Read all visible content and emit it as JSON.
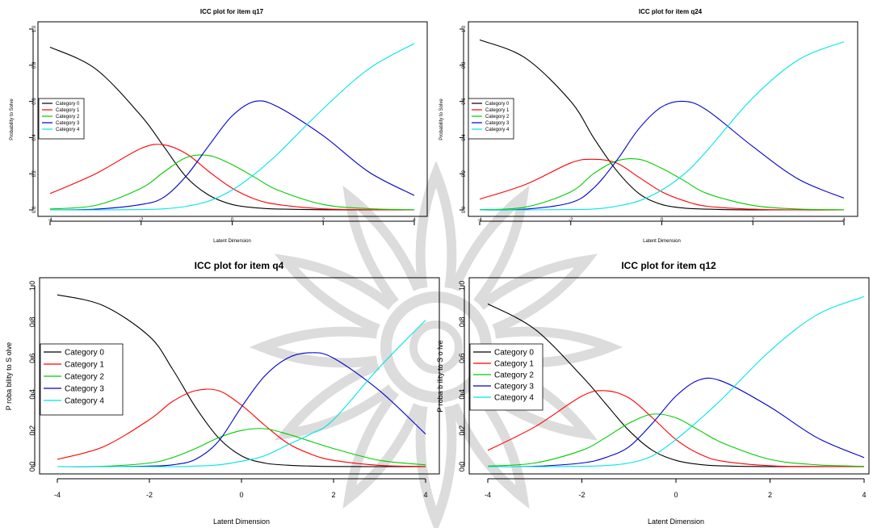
{
  "colors": {
    "category_0": "#000000",
    "category_1": "#ff0000",
    "category_2": "#00cc00",
    "category_3": "#0000cc",
    "category_4": "#00e5e5",
    "watermark": "#dcdcdc"
  },
  "watermark": {
    "icon": "ornamental-rosette-icon"
  },
  "chart_data": [
    {
      "type": "line",
      "title": "ICC plot for item q17",
      "xlabel": "Latent Dimension",
      "ylabel": "Probability to Solve",
      "xlim": [
        -4,
        4
      ],
      "ylim": [
        0,
        1
      ],
      "xticks": [
        "-4",
        "-2",
        "0",
        "2",
        "4"
      ],
      "yticks": [
        "0.0",
        "0.2",
        "0.4",
        "0.6",
        "0.8",
        "1.0"
      ],
      "legend_position": "left",
      "x": [
        -4,
        -3,
        -2,
        -1.5,
        -1,
        -0.5,
        0,
        0.5,
        1,
        2,
        3,
        4
      ],
      "series": [
        {
          "name": "Category 0",
          "color": "#000000",
          "values": [
            0.9,
            0.78,
            0.52,
            0.35,
            0.18,
            0.08,
            0.03,
            0.012,
            0.005,
            0.001,
            0.0,
            0.0
          ]
        },
        {
          "name": "Category 1",
          "color": "#ff0000",
          "values": [
            0.09,
            0.2,
            0.34,
            0.36,
            0.31,
            0.21,
            0.12,
            0.06,
            0.03,
            0.006,
            0.001,
            0.0
          ]
        },
        {
          "name": "Category 2",
          "color": "#00cc00",
          "values": [
            0.005,
            0.025,
            0.12,
            0.21,
            0.29,
            0.3,
            0.25,
            0.18,
            0.11,
            0.03,
            0.007,
            0.001
          ]
        },
        {
          "name": "Category 3",
          "color": "#0000cc",
          "values": [
            0.0,
            0.004,
            0.03,
            0.07,
            0.19,
            0.36,
            0.52,
            0.6,
            0.57,
            0.41,
            0.21,
            0.08
          ]
        },
        {
          "name": "Category 4",
          "color": "#00e5e5",
          "values": [
            0.0,
            0.0,
            0.002,
            0.006,
            0.02,
            0.05,
            0.11,
            0.2,
            0.31,
            0.56,
            0.78,
            0.92
          ]
        }
      ]
    },
    {
      "type": "line",
      "title": "ICC plot for item q24",
      "xlabel": "Latent Dimension",
      "ylabel": "Probability to Solve",
      "xlim": [
        -4,
        4
      ],
      "ylim": [
        0,
        1
      ],
      "xticks": [
        "-4",
        "-2",
        "0",
        "2",
        "4"
      ],
      "yticks": [
        "0.0",
        "0.2",
        "0.4",
        "0.6",
        "0.8",
        "1.0"
      ],
      "legend_position": "left",
      "x": [
        -4,
        -3,
        -2,
        -1.5,
        -1,
        -0.5,
        0,
        0.5,
        1,
        2,
        3,
        4
      ],
      "series": [
        {
          "name": "Category 0",
          "color": "#000000",
          "values": [
            0.94,
            0.84,
            0.6,
            0.4,
            0.22,
            0.09,
            0.03,
            0.01,
            0.004,
            0.0,
            0.0,
            0.0
          ]
        },
        {
          "name": "Category 1",
          "color": "#ff0000",
          "values": [
            0.06,
            0.14,
            0.26,
            0.28,
            0.26,
            0.18,
            0.1,
            0.05,
            0.02,
            0.004,
            0.0,
            0.0
          ]
        },
        {
          "name": "Category 2",
          "color": "#00cc00",
          "values": [
            0.002,
            0.015,
            0.1,
            0.2,
            0.27,
            0.28,
            0.23,
            0.16,
            0.09,
            0.025,
            0.005,
            0.001
          ]
        },
        {
          "name": "Category 3",
          "color": "#0000cc",
          "values": [
            0.0,
            0.004,
            0.04,
            0.12,
            0.27,
            0.45,
            0.57,
            0.6,
            0.55,
            0.35,
            0.17,
            0.065
          ]
        },
        {
          "name": "Category 4",
          "color": "#00e5e5",
          "values": [
            0.0,
            0.0,
            0.002,
            0.005,
            0.02,
            0.05,
            0.11,
            0.2,
            0.33,
            0.62,
            0.83,
            0.93
          ]
        }
      ]
    },
    {
      "type": "line",
      "title": "ICC plot for item q4",
      "xlabel": "Latent Dimension",
      "ylabel": "P roba bility to S olve",
      "xlim": [
        -4,
        4
      ],
      "ylim": [
        0,
        1
      ],
      "xticks": [
        "-4",
        "-2",
        "0",
        "2",
        "4"
      ],
      "yticks": [
        "0.0",
        "0.2",
        "0.4",
        "0.6",
        "0.8",
        "1.0"
      ],
      "legend_position": "left",
      "x": [
        -4,
        -3,
        -2,
        -1.5,
        -1,
        -0.5,
        0,
        0.5,
        1,
        1.5,
        2,
        3,
        4
      ],
      "series": [
        {
          "name": "Category 0",
          "color": "#000000",
          "values": [
            0.95,
            0.89,
            0.72,
            0.54,
            0.33,
            0.16,
            0.06,
            0.02,
            0.008,
            0.003,
            0.001,
            0.0,
            0.0
          ]
        },
        {
          "name": "Category 1",
          "color": "#ff0000",
          "values": [
            0.04,
            0.11,
            0.26,
            0.36,
            0.42,
            0.42,
            0.34,
            0.23,
            0.13,
            0.07,
            0.035,
            0.007,
            0.001
          ]
        },
        {
          "name": "Category 2",
          "color": "#00cc00",
          "values": [
            0.0,
            0.002,
            0.02,
            0.05,
            0.1,
            0.16,
            0.2,
            0.21,
            0.18,
            0.14,
            0.1,
            0.035,
            0.01
          ]
        },
        {
          "name": "Category 3",
          "color": "#0000cc",
          "values": [
            0.0,
            0.0,
            0.003,
            0.01,
            0.04,
            0.14,
            0.33,
            0.5,
            0.6,
            0.63,
            0.6,
            0.42,
            0.18
          ]
        },
        {
          "name": "Category 4",
          "color": "#00e5e5",
          "values": [
            0.0,
            0.0,
            0.0,
            0.0,
            0.003,
            0.01,
            0.03,
            0.06,
            0.12,
            0.18,
            0.26,
            0.55,
            0.81
          ]
        }
      ]
    },
    {
      "type": "line",
      "title": "ICC plot for item q12",
      "xlabel": "Latent Dimension",
      "ylabel": "P roba b ility to S o lve",
      "xlim": [
        -4,
        4
      ],
      "ylim": [
        0,
        1
      ],
      "xticks": [
        "-4",
        "-2",
        "0",
        "2",
        "4"
      ],
      "yticks": [
        "0.0",
        "0.2",
        "0.4",
        "0.6",
        "0.8",
        "1.0"
      ],
      "legend_position": "left",
      "x": [
        -4,
        -3,
        -2,
        -1.5,
        -1,
        -0.5,
        0,
        0.5,
        1,
        2,
        3,
        4
      ],
      "series": [
        {
          "name": "Category 0",
          "color": "#000000",
          "values": [
            0.9,
            0.76,
            0.5,
            0.35,
            0.2,
            0.09,
            0.035,
            0.012,
            0.004,
            0.0,
            0.0,
            0.0
          ]
        },
        {
          "name": "Category 1",
          "color": "#ff0000",
          "values": [
            0.09,
            0.22,
            0.39,
            0.42,
            0.38,
            0.27,
            0.15,
            0.07,
            0.03,
            0.005,
            0.001,
            0.0
          ]
        },
        {
          "name": "Category 2",
          "color": "#00cc00",
          "values": [
            0.003,
            0.02,
            0.09,
            0.16,
            0.24,
            0.29,
            0.27,
            0.2,
            0.13,
            0.04,
            0.01,
            0.002
          ]
        },
        {
          "name": "Category 3",
          "color": "#0000cc",
          "values": [
            0.0,
            0.002,
            0.02,
            0.05,
            0.11,
            0.24,
            0.39,
            0.48,
            0.47,
            0.33,
            0.16,
            0.05
          ]
        },
        {
          "name": "Category 4",
          "color": "#00e5e5",
          "values": [
            0.0,
            0.0,
            0.002,
            0.006,
            0.02,
            0.06,
            0.15,
            0.26,
            0.38,
            0.64,
            0.84,
            0.94
          ]
        }
      ]
    }
  ]
}
